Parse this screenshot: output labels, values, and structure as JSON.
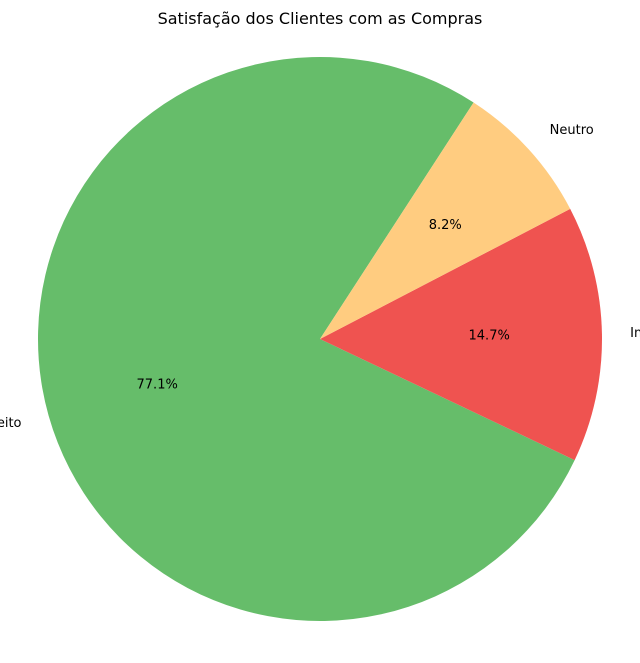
{
  "chart_data": {
    "type": "pie",
    "title": "Satisfação dos Clientes com as Compras",
    "categories": [
      "Satisfeito",
      "Insatisfeito",
      "Neutro"
    ],
    "values": [
      77.1,
      14.7,
      8.2
    ],
    "labels": [
      "77.1%",
      "14.7%",
      "8.2%"
    ],
    "colors": [
      "#66bd6a",
      "#ef5350",
      "#ffcc80"
    ],
    "start_angle_deg": 57,
    "direction": "counterclockwise",
    "legend": "none"
  }
}
